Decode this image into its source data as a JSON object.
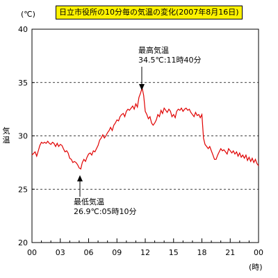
{
  "chart_data": {
    "type": "line",
    "title": "日立市役所の10分毎の気温の変化(2007年8月16日)",
    "ylabel": "気温",
    "y_unit": "(℃)",
    "x_unit": "(時)",
    "ylim": [
      20,
      40
    ],
    "yticks": [
      "20",
      "25",
      "30",
      "35",
      "40"
    ],
    "xlim": [
      0,
      24
    ],
    "xticks": [
      "00",
      "03",
      "06",
      "09",
      "12",
      "15",
      "18",
      "21",
      "00"
    ],
    "grid": "dashed horizontal lines at 25, 30, 35",
    "line_color": "#e00000",
    "annotations": [
      {
        "label": "最高気温",
        "value_text": "34.5℃:11時40分",
        "x": 11.67,
        "y": 34.5
      },
      {
        "label": "最低気温",
        "value_text": "26.9℃:05時10分",
        "x": 5.17,
        "y": 26.9
      }
    ],
    "series": [
      {
        "x": [
          0.0,
          0.33,
          0.5,
          0.67,
          0.83,
          1.0,
          1.17,
          1.33,
          1.5,
          1.67,
          1.83,
          2.0,
          2.17,
          2.33,
          2.5,
          2.67,
          2.83,
          3.0,
          3.17,
          3.33,
          3.5,
          3.67,
          3.83,
          4.0,
          4.17,
          4.33,
          4.5,
          4.67,
          4.83,
          5.0,
          5.17,
          5.33,
          5.5,
          5.67,
          5.83,
          6.0,
          6.17,
          6.33,
          6.5,
          6.67,
          6.83,
          7.0,
          7.17,
          7.33,
          7.5,
          7.67,
          7.83,
          8.0,
          8.17,
          8.33,
          8.5,
          8.67,
          8.83,
          9.0,
          9.17,
          9.33,
          9.5,
          9.67,
          9.83,
          10.0,
          10.17,
          10.33,
          10.5,
          10.67,
          10.83,
          11.0,
          11.17,
          11.33,
          11.5,
          11.67,
          11.83,
          12.0,
          12.17,
          12.33,
          12.5,
          12.67,
          12.83,
          13.0,
          13.17,
          13.33,
          13.5,
          13.67,
          13.83,
          14.0,
          14.17,
          14.33,
          14.5,
          14.67,
          14.83,
          15.0,
          15.17,
          15.33,
          15.5,
          15.67,
          15.83,
          16.0,
          16.17,
          16.33,
          16.5,
          16.67,
          16.83,
          17.0,
          17.17,
          17.33,
          17.5,
          17.67,
          17.83,
          18.0,
          18.17,
          18.33,
          18.5,
          18.67,
          18.83,
          19.0,
          19.17,
          19.33,
          19.5,
          19.67,
          19.83,
          20.0,
          20.17,
          20.33,
          20.5,
          20.67,
          20.83,
          21.0,
          21.17,
          21.33,
          21.5,
          21.67,
          21.83,
          22.0,
          22.17,
          22.33,
          22.5,
          22.67,
          22.83,
          23.0,
          23.17,
          23.33,
          23.5,
          23.67,
          23.83,
          24.0
        ],
        "y": [
          28.2,
          28.5,
          28.1,
          28.6,
          29.1,
          29.4,
          29.3,
          29.4,
          29.3,
          29.5,
          29.3,
          29.2,
          29.4,
          29.3,
          29.0,
          29.3,
          29.0,
          29.2,
          29.1,
          28.8,
          28.5,
          28.6,
          28.4,
          27.9,
          27.8,
          27.5,
          27.6,
          27.5,
          27.3,
          27.0,
          26.9,
          27.5,
          27.8,
          27.6,
          28.0,
          28.3,
          28.4,
          28.2,
          28.6,
          28.5,
          28.8,
          29.1,
          29.6,
          29.8,
          30.1,
          29.8,
          30.0,
          30.3,
          30.5,
          30.8,
          30.5,
          31.0,
          31.2,
          31.5,
          31.4,
          31.8,
          32.0,
          32.1,
          31.8,
          32.3,
          32.5,
          32.4,
          32.6,
          32.8,
          32.5,
          33.0,
          32.7,
          33.6,
          34.0,
          34.5,
          33.8,
          32.3,
          32.0,
          31.6,
          31.8,
          31.2,
          31.0,
          31.2,
          31.5,
          32.0,
          31.8,
          32.4,
          32.1,
          32.6,
          32.4,
          32.2,
          32.5,
          32.3,
          31.8,
          32.0,
          31.7,
          32.3,
          32.5,
          32.4,
          32.6,
          32.3,
          32.5,
          32.6,
          32.4,
          32.5,
          32.2,
          32.0,
          31.8,
          32.2,
          31.9,
          32.0,
          31.7,
          32.0,
          29.8,
          29.2,
          29.0,
          28.8,
          29.0,
          28.6,
          28.2,
          27.8,
          27.8,
          28.2,
          28.5,
          28.8,
          28.6,
          28.7,
          28.5,
          28.3,
          28.8,
          28.6,
          28.4,
          28.6,
          28.3,
          28.5,
          28.1,
          28.4,
          28.0,
          28.2,
          27.9,
          28.2,
          27.7,
          28.0,
          27.6,
          27.9,
          27.5,
          27.8,
          27.4,
          27.2
        ]
      }
    ]
  }
}
